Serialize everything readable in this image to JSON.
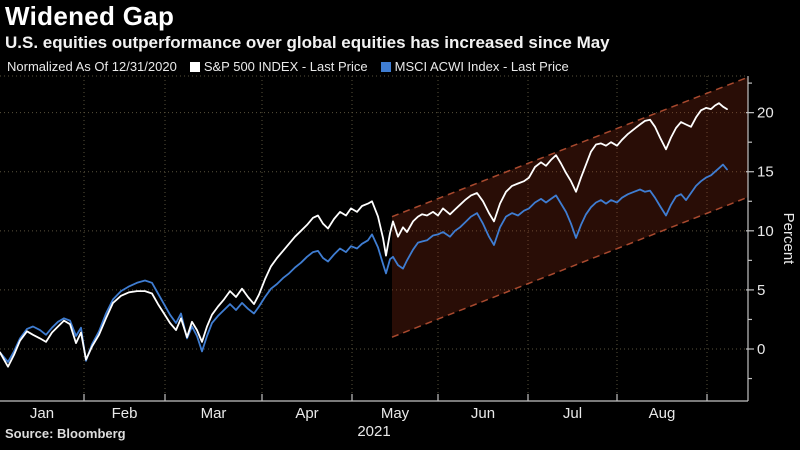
{
  "header": {
    "title": "Widened Gap",
    "subtitle": "U.S. equities outperformance over global equities has increased since May"
  },
  "legend": {
    "note": "Normalized As Of 12/31/2020",
    "series": [
      {
        "label": "S&P 500 INDEX - Last Price",
        "swatch": "white-square-icon"
      },
      {
        "label": "MSCI ACWI Index - Last Price",
        "swatch": "blue-square-icon"
      }
    ]
  },
  "source": "Source: Bloomberg",
  "colors": {
    "background": "#000000",
    "sp500_line": "#ffffff",
    "acwi_line": "#3f7dd2",
    "channel_fill": "rgba(150,48,24,0.27)",
    "channel_dash": "#a8492e",
    "axis": "#c2c2c2",
    "gridline": "#59523d"
  },
  "chart_data": {
    "type": "line",
    "title": "Widened Gap",
    "subtitle": "U.S. equities outperformance over global equities has increased since May",
    "note": "Normalized As Of 12/31/2020",
    "xlabel": "",
    "ylabel": "Percent",
    "ylim": [
      -4.4,
      23.1
    ],
    "yticks": [
      0,
      5,
      10,
      15,
      20
    ],
    "yticks_minor": [
      -2.5,
      2.5,
      7.5,
      12.5,
      17.5,
      22.5
    ],
    "grid": "dotted, horizontal at major yticks and vertical at month boundaries",
    "legend_position": "top",
    "x_axis": {
      "year": "2021",
      "t_max": 748,
      "ticks": [
        0,
        84,
        165,
        262,
        352,
        438,
        528,
        617,
        707
      ],
      "months": [
        "Jan",
        "Feb",
        "Mar",
        "Apr",
        "May",
        "Jun",
        "Jul",
        "Aug"
      ]
    },
    "channel_annotation": {
      "description": "dashed rising trend channel highlighting the widening gap since mid-May",
      "t1": 392,
      "t2": 748,
      "top1": 11.2,
      "top2": 23.0,
      "bottom1": 1.0,
      "bottom2": 12.85,
      "fill": "rgba(150,48,24,0.27)",
      "border": "#a8492e",
      "style": "dashed"
    },
    "series": [
      {
        "id": "sp500",
        "name": "S&P 500 INDEX - Last Price",
        "color": "#ffffff",
        "unit": "percent change since 12/31/2020",
        "points": [
          [
            0,
            -0.3
          ],
          [
            8,
            -1.5
          ],
          [
            14,
            -0.5
          ],
          [
            20,
            0.7
          ],
          [
            27,
            1.5
          ],
          [
            33,
            1.2
          ],
          [
            40,
            0.9
          ],
          [
            46,
            0.6
          ],
          [
            52,
            1.4
          ],
          [
            58,
            1.9
          ],
          [
            64,
            2.4
          ],
          [
            70,
            2.1
          ],
          [
            76,
            0.5
          ],
          [
            81,
            1.4
          ],
          [
            86,
            -0.9
          ],
          [
            92,
            0.2
          ],
          [
            99,
            1.2
          ],
          [
            106,
            2.6
          ],
          [
            113,
            3.9
          ],
          [
            121,
            4.5
          ],
          [
            129,
            4.8
          ],
          [
            137,
            4.9
          ],
          [
            145,
            4.9
          ],
          [
            152,
            4.7
          ],
          [
            158,
            3.8
          ],
          [
            164,
            3.0
          ],
          [
            170,
            2.2
          ],
          [
            176,
            1.6
          ],
          [
            181,
            2.6
          ],
          [
            187,
            1.0
          ],
          [
            192,
            2.3
          ],
          [
            197,
            1.6
          ],
          [
            202,
            0.6
          ],
          [
            207,
            1.9
          ],
          [
            212,
            2.9
          ],
          [
            218,
            3.6
          ],
          [
            224,
            4.2
          ],
          [
            230,
            4.9
          ],
          [
            236,
            4.4
          ],
          [
            242,
            5.1
          ],
          [
            248,
            4.4
          ],
          [
            254,
            3.8
          ],
          [
            259,
            4.6
          ],
          [
            265,
            5.9
          ],
          [
            271,
            7.0
          ],
          [
            277,
            7.7
          ],
          [
            283,
            8.3
          ],
          [
            289,
            8.9
          ],
          [
            295,
            9.5
          ],
          [
            301,
            10.0
          ],
          [
            307,
            10.5
          ],
          [
            313,
            11.1
          ],
          [
            318,
            11.3
          ],
          [
            323,
            10.6
          ],
          [
            328,
            10.2
          ],
          [
            334,
            11.0
          ],
          [
            340,
            11.6
          ],
          [
            346,
            11.3
          ],
          [
            351,
            11.9
          ],
          [
            357,
            11.6
          ],
          [
            362,
            12.1
          ],
          [
            368,
            12.3
          ],
          [
            372,
            12.5
          ],
          [
            378,
            11.2
          ],
          [
            383,
            9.4
          ],
          [
            386,
            7.9
          ],
          [
            390,
            9.8
          ],
          [
            393,
            10.8
          ],
          [
            398,
            9.5
          ],
          [
            403,
            10.3
          ],
          [
            407,
            9.9
          ],
          [
            413,
            10.8
          ],
          [
            418,
            11.2
          ],
          [
            422,
            11.4
          ],
          [
            427,
            11.3
          ],
          [
            433,
            11.6
          ],
          [
            438,
            11.3
          ],
          [
            443,
            11.9
          ],
          [
            450,
            11.4
          ],
          [
            455,
            11.8
          ],
          [
            460,
            12.2
          ],
          [
            465,
            12.6
          ],
          [
            471,
            13.0
          ],
          [
            477,
            13.2
          ],
          [
            483,
            12.5
          ],
          [
            489,
            11.5
          ],
          [
            494,
            10.8
          ],
          [
            500,
            12.3
          ],
          [
            506,
            13.3
          ],
          [
            512,
            13.8
          ],
          [
            518,
            14.0
          ],
          [
            524,
            14.2
          ],
          [
            529,
            14.5
          ],
          [
            535,
            15.4
          ],
          [
            541,
            15.8
          ],
          [
            546,
            15.5
          ],
          [
            551,
            16.0
          ],
          [
            556,
            16.4
          ],
          [
            561,
            15.7
          ],
          [
            566,
            14.9
          ],
          [
            571,
            14.2
          ],
          [
            576,
            13.3
          ],
          [
            581,
            14.5
          ],
          [
            586,
            15.6
          ],
          [
            591,
            16.7
          ],
          [
            596,
            17.3
          ],
          [
            601,
            17.4
          ],
          [
            606,
            17.2
          ],
          [
            611,
            17.5
          ],
          [
            617,
            17.2
          ],
          [
            622,
            17.7
          ],
          [
            628,
            18.2
          ],
          [
            634,
            18.6
          ],
          [
            640,
            19.0
          ],
          [
            645,
            19.3
          ],
          [
            650,
            19.4
          ],
          [
            655,
            18.8
          ],
          [
            660,
            17.9
          ],
          [
            666,
            16.9
          ],
          [
            671,
            17.9
          ],
          [
            676,
            18.7
          ],
          [
            681,
            19.2
          ],
          [
            686,
            19.0
          ],
          [
            691,
            18.8
          ],
          [
            696,
            19.6
          ],
          [
            701,
            20.2
          ],
          [
            706,
            20.4
          ],
          [
            711,
            20.3
          ],
          [
            715,
            20.6
          ],
          [
            719,
            20.8
          ],
          [
            723,
            20.5
          ],
          [
            727,
            20.3
          ]
        ]
      },
      {
        "id": "acwi",
        "name": "MSCI ACWI Index - Last Price",
        "color": "#3f7dd2",
        "unit": "percent change since 12/31/2020",
        "points": [
          [
            0,
            -0.3
          ],
          [
            8,
            -1.1
          ],
          [
            14,
            -0.2
          ],
          [
            20,
            0.9
          ],
          [
            27,
            1.7
          ],
          [
            33,
            1.9
          ],
          [
            40,
            1.6
          ],
          [
            46,
            1.2
          ],
          [
            52,
            1.8
          ],
          [
            58,
            2.3
          ],
          [
            64,
            2.6
          ],
          [
            70,
            2.4
          ],
          [
            76,
            1.1
          ],
          [
            81,
            1.8
          ],
          [
            86,
            -1.0
          ],
          [
            92,
            0.4
          ],
          [
            99,
            1.5
          ],
          [
            106,
            3.0
          ],
          [
            113,
            4.2
          ],
          [
            121,
            4.9
          ],
          [
            129,
            5.3
          ],
          [
            137,
            5.6
          ],
          [
            145,
            5.8
          ],
          [
            152,
            5.6
          ],
          [
            158,
            4.7
          ],
          [
            164,
            3.8
          ],
          [
            170,
            2.9
          ],
          [
            176,
            2.2
          ],
          [
            181,
            3.0
          ],
          [
            187,
            0.9
          ],
          [
            192,
            1.9
          ],
          [
            197,
            1.1
          ],
          [
            202,
            -0.2
          ],
          [
            207,
            1.1
          ],
          [
            212,
            2.2
          ],
          [
            218,
            2.8
          ],
          [
            224,
            3.3
          ],
          [
            230,
            3.8
          ],
          [
            236,
            3.3
          ],
          [
            242,
            3.9
          ],
          [
            248,
            3.4
          ],
          [
            254,
            3.0
          ],
          [
            259,
            3.6
          ],
          [
            265,
            4.4
          ],
          [
            271,
            5.1
          ],
          [
            277,
            5.5
          ],
          [
            283,
            6.0
          ],
          [
            289,
            6.4
          ],
          [
            295,
            6.9
          ],
          [
            301,
            7.3
          ],
          [
            307,
            7.8
          ],
          [
            313,
            8.2
          ],
          [
            318,
            8.3
          ],
          [
            323,
            7.7
          ],
          [
            328,
            7.4
          ],
          [
            334,
            8.0
          ],
          [
            340,
            8.5
          ],
          [
            346,
            8.2
          ],
          [
            351,
            8.7
          ],
          [
            357,
            8.5
          ],
          [
            362,
            8.9
          ],
          [
            368,
            9.2
          ],
          [
            372,
            9.7
          ],
          [
            378,
            8.6
          ],
          [
            383,
            7.2
          ],
          [
            386,
            6.4
          ],
          [
            390,
            7.6
          ],
          [
            393,
            7.8
          ],
          [
            398,
            7.1
          ],
          [
            403,
            6.8
          ],
          [
            407,
            7.5
          ],
          [
            413,
            8.4
          ],
          [
            418,
            9.0
          ],
          [
            422,
            9.1
          ],
          [
            427,
            9.2
          ],
          [
            433,
            9.6
          ],
          [
            438,
            9.7
          ],
          [
            443,
            9.9
          ],
          [
            450,
            9.5
          ],
          [
            455,
            10.0
          ],
          [
            460,
            10.3
          ],
          [
            465,
            10.7
          ],
          [
            471,
            11.2
          ],
          [
            477,
            11.5
          ],
          [
            483,
            10.6
          ],
          [
            489,
            9.5
          ],
          [
            494,
            8.8
          ],
          [
            500,
            10.3
          ],
          [
            506,
            11.2
          ],
          [
            512,
            11.5
          ],
          [
            518,
            11.3
          ],
          [
            524,
            11.7
          ],
          [
            529,
            11.9
          ],
          [
            535,
            12.4
          ],
          [
            541,
            12.7
          ],
          [
            546,
            12.4
          ],
          [
            551,
            12.7
          ],
          [
            556,
            13.0
          ],
          [
            561,
            12.3
          ],
          [
            566,
            11.6
          ],
          [
            571,
            10.6
          ],
          [
            576,
            9.4
          ],
          [
            581,
            10.5
          ],
          [
            586,
            11.4
          ],
          [
            591,
            12.0
          ],
          [
            596,
            12.4
          ],
          [
            601,
            12.6
          ],
          [
            606,
            12.3
          ],
          [
            611,
            12.6
          ],
          [
            617,
            12.4
          ],
          [
            622,
            12.8
          ],
          [
            628,
            13.1
          ],
          [
            634,
            13.3
          ],
          [
            640,
            13.5
          ],
          [
            645,
            13.3
          ],
          [
            650,
            13.4
          ],
          [
            655,
            12.8
          ],
          [
            660,
            12.1
          ],
          [
            666,
            11.3
          ],
          [
            671,
            12.2
          ],
          [
            676,
            12.9
          ],
          [
            681,
            13.1
          ],
          [
            686,
            12.6
          ],
          [
            691,
            13.2
          ],
          [
            696,
            13.8
          ],
          [
            701,
            14.2
          ],
          [
            706,
            14.5
          ],
          [
            711,
            14.7
          ],
          [
            715,
            15.0
          ],
          [
            719,
            15.3
          ],
          [
            723,
            15.6
          ],
          [
            727,
            15.2
          ]
        ]
      }
    ]
  }
}
